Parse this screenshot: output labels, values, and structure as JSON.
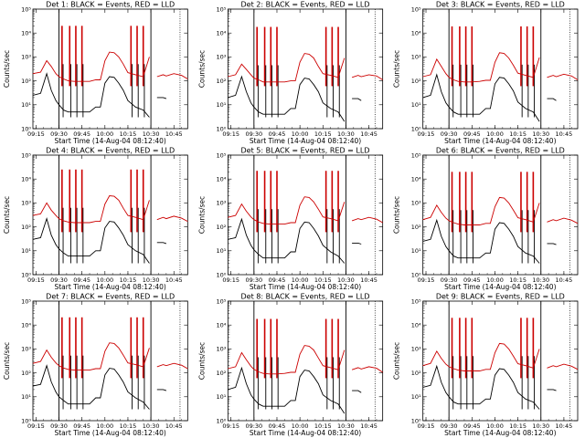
{
  "chart_data": {
    "type": "line",
    "layout": "3x3 grid",
    "y_scale": "log",
    "ylim": [
      1,
      100000
    ],
    "ylabel": "Counts/sec",
    "xlabel": "Start Time (14-Aug-04 08:12:40)",
    "x_tick_labels": [
      "09:15",
      "09:30",
      "09:45",
      "10:00",
      "10:15",
      "10:30",
      "10:45"
    ],
    "y_tick_labels": [
      "10⁰",
      "10¹",
      "10²",
      "10³",
      "10⁴",
      "10⁵"
    ],
    "x_range": [
      "09:13",
      "10:54"
    ],
    "vertical_markers": [
      "09:30",
      "10:30"
    ],
    "dotted_marker": "10:49",
    "colors": {
      "events": "#000000",
      "lld": "#cc0000"
    },
    "series_names": [
      "BLACK = Events",
      "RED = LLD"
    ],
    "x": [
      "09:13",
      "09:18",
      "09:22",
      "09:25",
      "09:28",
      "09:30",
      "09:33",
      "09:36",
      "09:40",
      "09:45",
      "09:50",
      "09:54",
      "09:57",
      "10:00",
      "10:03",
      "10:06",
      "10:09",
      "10:12",
      "10:15",
      "10:20",
      "10:25",
      "10:29",
      "10:30",
      "10:34",
      "10:38",
      "10:40",
      "10:45",
      "10:50",
      "10:54"
    ],
    "panels": [
      {
        "title": "Det 1: BLACK = Events, RED = LLD",
        "lld": [
          200,
          230,
          700,
          400,
          200,
          150,
          120,
          100,
          95,
          95,
          95,
          110,
          110,
          700,
          1600,
          1500,
          1000,
          500,
          220,
          180,
          150,
          1000,
          null,
          150,
          180,
          160,
          200,
          170,
          120
        ],
        "events": [
          25,
          30,
          200,
          40,
          15,
          10,
          6,
          5,
          5,
          5,
          5,
          8,
          8,
          80,
          150,
          140,
          80,
          40,
          15,
          8,
          6,
          3,
          null,
          20,
          20,
          18,
          null,
          null,
          null
        ],
        "spikes": [
          "09:32",
          "09:37",
          "09:41",
          "09:45",
          "10:17",
          "10:21",
          "10:25"
        ],
        "spike_peak": 20000
      },
      {
        "title": "Det 2: BLACK = Events, RED = LLD",
        "lld": [
          150,
          180,
          500,
          300,
          180,
          130,
          110,
          90,
          90,
          90,
          90,
          100,
          100,
          600,
          1400,
          1300,
          900,
          400,
          200,
          170,
          140,
          900,
          null,
          140,
          170,
          150,
          180,
          160,
          110
        ],
        "events": [
          20,
          25,
          150,
          35,
          12,
          8,
          5,
          4,
          4,
          4,
          4,
          7,
          7,
          70,
          130,
          120,
          70,
          35,
          12,
          7,
          5,
          2,
          null,
          18,
          18,
          15,
          null,
          null,
          null
        ],
        "spikes": [
          "09:32",
          "09:37",
          "09:41",
          "09:45",
          "10:17",
          "10:21",
          "10:25"
        ],
        "spike_peak": 18000
      },
      {
        "title": "Det 3: BLACK = Events, RED = LLD",
        "lld": [
          150,
          180,
          800,
          400,
          200,
          140,
          110,
          95,
          90,
          90,
          95,
          105,
          105,
          600,
          1500,
          1400,
          900,
          450,
          210,
          170,
          140,
          950,
          null,
          140,
          170,
          150,
          190,
          160,
          110
        ],
        "events": [
          20,
          25,
          180,
          35,
          12,
          8,
          5,
          4,
          4,
          4,
          4,
          7,
          7,
          75,
          140,
          130,
          75,
          38,
          13,
          7,
          5,
          2,
          null,
          18,
          18,
          15,
          null,
          null,
          null
        ],
        "spikes": [
          "09:32",
          "09:37",
          "09:41",
          "09:45",
          "10:17",
          "10:21",
          "10:25"
        ],
        "spike_peak": 19000
      },
      {
        "title": "Det 4: BLACK = Events, RED = LLD",
        "lld": [
          300,
          350,
          1000,
          500,
          300,
          220,
          180,
          160,
          150,
          150,
          150,
          170,
          170,
          900,
          2000,
          1900,
          1300,
          600,
          300,
          250,
          200,
          1300,
          null,
          200,
          250,
          220,
          280,
          230,
          170
        ],
        "events": [
          30,
          35,
          220,
          45,
          18,
          12,
          8,
          6,
          6,
          6,
          6,
          10,
          10,
          90,
          170,
          160,
          90,
          45,
          18,
          10,
          7,
          3,
          null,
          22,
          22,
          20,
          null,
          null,
          null
        ],
        "spikes": [
          "09:32",
          "09:37",
          "09:41",
          "09:45",
          "10:17",
          "10:21",
          "10:25"
        ],
        "spike_peak": 25000
      },
      {
        "title": "Det 5: BLACK = Events, RED = LLD",
        "lld": [
          250,
          300,
          900,
          450,
          260,
          200,
          160,
          140,
          130,
          130,
          130,
          150,
          150,
          800,
          1800,
          1700,
          1100,
          550,
          260,
          220,
          180,
          1100,
          null,
          180,
          220,
          200,
          250,
          210,
          150
        ],
        "events": [
          30,
          35,
          210,
          45,
          17,
          11,
          7,
          5,
          5,
          5,
          5,
          9,
          9,
          85,
          160,
          150,
          85,
          42,
          17,
          9,
          6,
          3,
          null,
          21,
          21,
          19,
          null,
          null,
          null
        ],
        "spikes": [
          "09:32",
          "09:37",
          "09:41",
          "09:45",
          "10:17",
          "10:21",
          "10:25"
        ],
        "spike_peak": 22000
      },
      {
        "title": "Det 6: BLACK = Events, RED = LLD",
        "lld": [
          200,
          250,
          800,
          400,
          230,
          180,
          150,
          130,
          120,
          120,
          120,
          140,
          140,
          700,
          1700,
          1600,
          1000,
          500,
          240,
          200,
          160,
          1000,
          null,
          160,
          200,
          180,
          230,
          190,
          140
        ],
        "events": [
          25,
          30,
          190,
          40,
          15,
          10,
          6,
          5,
          5,
          5,
          5,
          8,
          8,
          80,
          150,
          140,
          80,
          40,
          15,
          8,
          6,
          3,
          null,
          20,
          20,
          18,
          null,
          null,
          null
        ],
        "spikes": [
          "09:32",
          "09:37",
          "09:41",
          "09:45",
          "10:17",
          "10:21",
          "10:25"
        ],
        "spike_peak": 20000
      },
      {
        "title": "Det 7: BLACK = Events, RED = LLD",
        "lld": [
          250,
          300,
          900,
          450,
          260,
          200,
          160,
          140,
          130,
          130,
          130,
          150,
          150,
          800,
          1800,
          1700,
          1100,
          550,
          260,
          220,
          180,
          1100,
          null,
          180,
          220,
          200,
          250,
          210,
          150
        ],
        "events": [
          28,
          33,
          200,
          42,
          16,
          10,
          7,
          5,
          5,
          5,
          5,
          9,
          9,
          82,
          155,
          145,
          82,
          41,
          16,
          9,
          6,
          3,
          null,
          20,
          20,
          18,
          null,
          null,
          null
        ],
        "spikes": [
          "09:32",
          "09:37",
          "09:41",
          "09:45",
          "10:17",
          "10:21",
          "10:25"
        ],
        "spike_peak": 21000
      },
      {
        "title": "Det 8: BLACK = Events, RED = LLD",
        "lld": [
          150,
          180,
          700,
          350,
          190,
          140,
          110,
          95,
          90,
          90,
          95,
          105,
          105,
          600,
          1400,
          1300,
          900,
          420,
          200,
          165,
          135,
          900,
          null,
          135,
          165,
          145,
          180,
          155,
          105
        ],
        "events": [
          20,
          25,
          160,
          35,
          12,
          8,
          5,
          4,
          4,
          4,
          4,
          7,
          7,
          70,
          130,
          120,
          70,
          35,
          12,
          7,
          5,
          2,
          null,
          18,
          18,
          15,
          null,
          null,
          null
        ],
        "spikes": [
          "09:32",
          "09:37",
          "09:41",
          "09:45",
          "10:17",
          "10:21",
          "10:25"
        ],
        "spike_peak": 18000
      },
      {
        "title": "Det 9: BLACK = Events, RED = LLD",
        "lld": [
          200,
          250,
          800,
          400,
          230,
          180,
          150,
          130,
          120,
          120,
          120,
          140,
          140,
          700,
          1700,
          1600,
          1000,
          500,
          240,
          200,
          160,
          1000,
          null,
          160,
          200,
          180,
          230,
          190,
          140
        ],
        "events": [
          25,
          30,
          190,
          40,
          15,
          10,
          6,
          5,
          5,
          5,
          5,
          8,
          8,
          80,
          150,
          140,
          80,
          40,
          15,
          8,
          6,
          3,
          null,
          20,
          20,
          18,
          null,
          null,
          null
        ],
        "spikes": [
          "09:32",
          "09:37",
          "09:41",
          "09:45",
          "10:17",
          "10:21",
          "10:25"
        ],
        "spike_peak": 20000
      }
    ]
  }
}
